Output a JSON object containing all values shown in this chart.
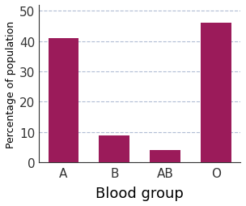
{
  "categories": [
    "A",
    "B",
    "AB",
    "O"
  ],
  "values": [
    41,
    9,
    4,
    46
  ],
  "bar_color": "#9B1B5A",
  "xlabel": "Blood group",
  "ylabel": "Percentage of population",
  "ylim": [
    0,
    52
  ],
  "yticks": [
    0,
    10,
    20,
    30,
    40,
    50
  ],
  "grid_color": "#b0bcd4",
  "background_color": "#ffffff",
  "xlabel_fontsize": 13,
  "ylabel_fontsize": 9,
  "tick_fontsize": 11,
  "bar_width": 0.6
}
